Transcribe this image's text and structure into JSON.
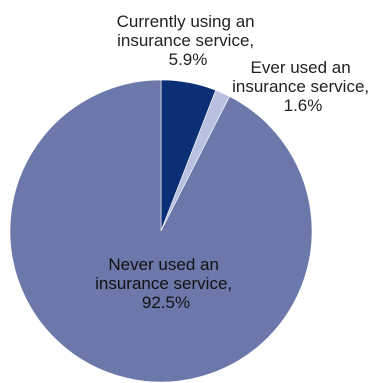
{
  "chart_data": {
    "type": "pie",
    "title": "",
    "start_angle_deg": 0,
    "slices": [
      {
        "value": 5.9,
        "color": "#0a2f75",
        "label_lines": [
          "Currently using an",
          "insurance service,",
          "5.9%"
        ]
      },
      {
        "value": 1.6,
        "color": "#b9c0e2",
        "label_lines": [
          "Ever used an",
          "insurance service,",
          "1.6%"
        ]
      },
      {
        "value": 92.5,
        "color": "#6d78aa",
        "label_lines": [
          "Never used an",
          "insurance service,",
          "92.5%"
        ]
      }
    ]
  }
}
